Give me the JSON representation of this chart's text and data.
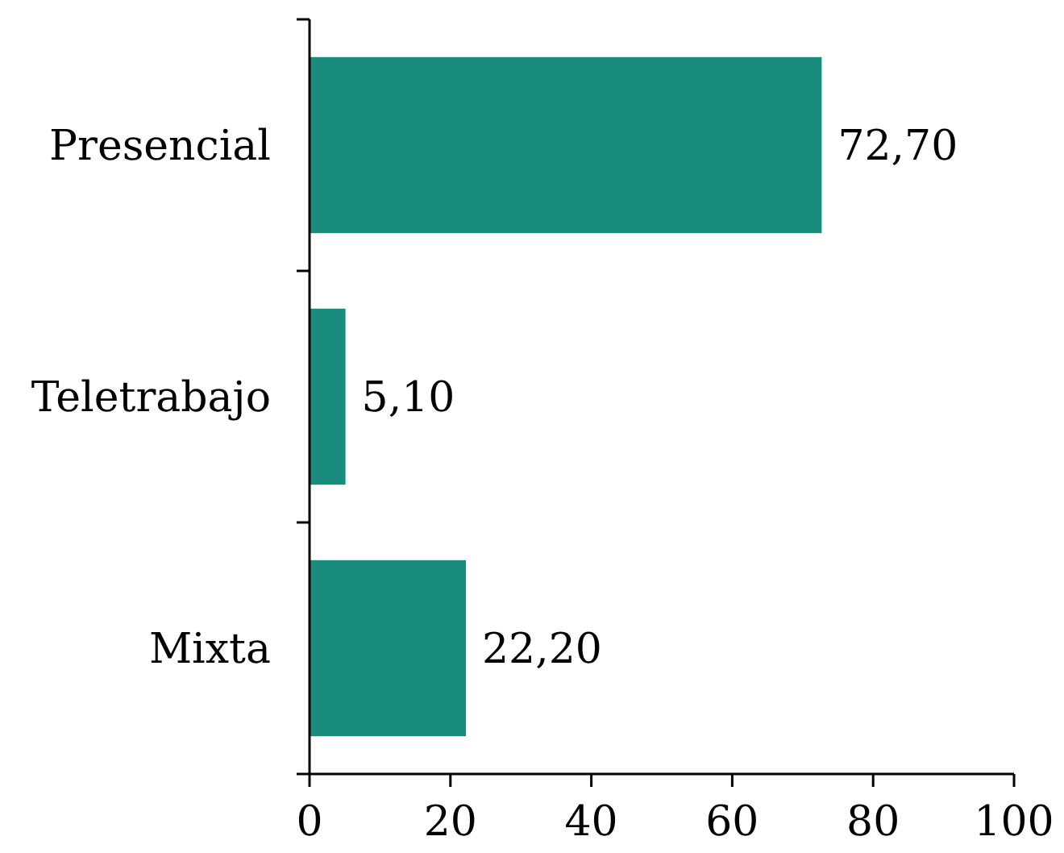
{
  "chart_data": {
    "type": "bar",
    "orientation": "horizontal",
    "categories": [
      "Presencial",
      "Teletrabajo",
      "Mixta"
    ],
    "values": [
      72.7,
      5.1,
      22.2
    ],
    "value_labels": [
      "72,70",
      "5,10",
      "22,20"
    ],
    "color": "#1a8c7e",
    "xlim": [
      0,
      100
    ],
    "xticks": [
      0,
      20,
      40,
      60,
      80,
      100
    ],
    "grid": false
  }
}
